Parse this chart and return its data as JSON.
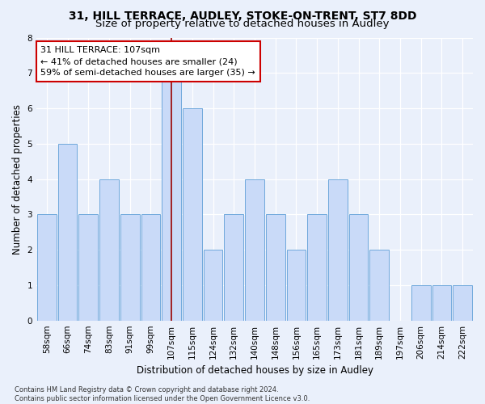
{
  "title1": "31, HILL TERRACE, AUDLEY, STOKE-ON-TRENT, ST7 8DD",
  "title2": "Size of property relative to detached houses in Audley",
  "xlabel": "Distribution of detached houses by size in Audley",
  "ylabel": "Number of detached properties",
  "categories": [
    "58sqm",
    "66sqm",
    "74sqm",
    "83sqm",
    "91sqm",
    "99sqm",
    "107sqm",
    "115sqm",
    "124sqm",
    "132sqm",
    "140sqm",
    "148sqm",
    "156sqm",
    "165sqm",
    "173sqm",
    "181sqm",
    "189sqm",
    "197sqm",
    "206sqm",
    "214sqm",
    "222sqm"
  ],
  "values": [
    3,
    5,
    3,
    4,
    3,
    3,
    7,
    6,
    2,
    3,
    4,
    3,
    2,
    3,
    4,
    3,
    2,
    0,
    1,
    1,
    1
  ],
  "highlight_index": 6,
  "bar_color": "#c9daf8",
  "bar_edge_color": "#6fa8dc",
  "highlight_line_color": "#990000",
  "annotation_text": "31 HILL TERRACE: 107sqm\n← 41% of detached houses are smaller (24)\n59% of semi-detached houses are larger (35) →",
  "annotation_box_color": "white",
  "annotation_box_edge": "#cc0000",
  "ylim": [
    0,
    8
  ],
  "yticks": [
    0,
    1,
    2,
    3,
    4,
    5,
    6,
    7,
    8
  ],
  "footer": "Contains HM Land Registry data © Crown copyright and database right 2024.\nContains public sector information licensed under the Open Government Licence v3.0.",
  "background_color": "#eaf0fb",
  "grid_color": "#ffffff",
  "title1_fontsize": 10,
  "title2_fontsize": 9.5,
  "label_fontsize": 8.5,
  "tick_fontsize": 7.5,
  "annotation_fontsize": 8,
  "footer_fontsize": 6
}
